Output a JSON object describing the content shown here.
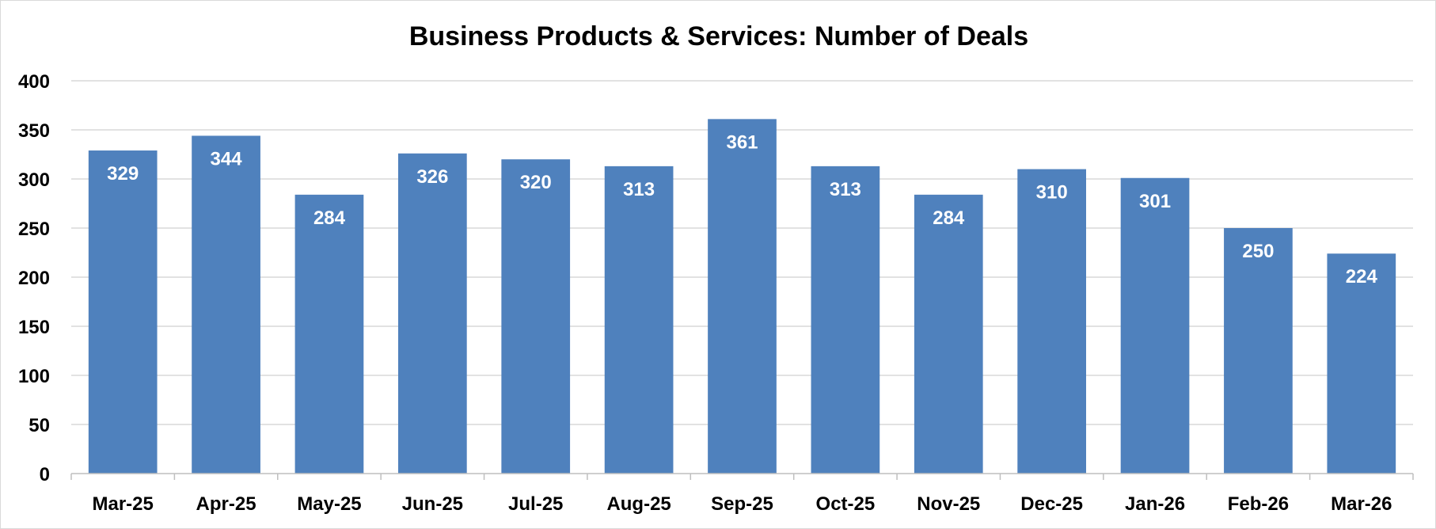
{
  "chart_data": {
    "type": "bar",
    "title": "Business Products & Services: Number of Deals",
    "xlabel": "",
    "ylabel": "",
    "categories": [
      "Mar-25",
      "Apr-25",
      "May-25",
      "Jun-25",
      "Jul-25",
      "Aug-25",
      "Sep-25",
      "Oct-25",
      "Nov-25",
      "Dec-25",
      "Jan-26",
      "Feb-26",
      "Mar-26"
    ],
    "values": [
      329,
      344,
      284,
      326,
      320,
      313,
      361,
      313,
      284,
      310,
      301,
      250,
      224
    ],
    "ylim": [
      0,
      400
    ],
    "yticks": [
      0,
      50,
      100,
      150,
      200,
      250,
      300,
      350,
      400
    ],
    "grid": true,
    "legend": "none",
    "bar_color": "#4f81bd",
    "label_color": "#ffffff"
  }
}
